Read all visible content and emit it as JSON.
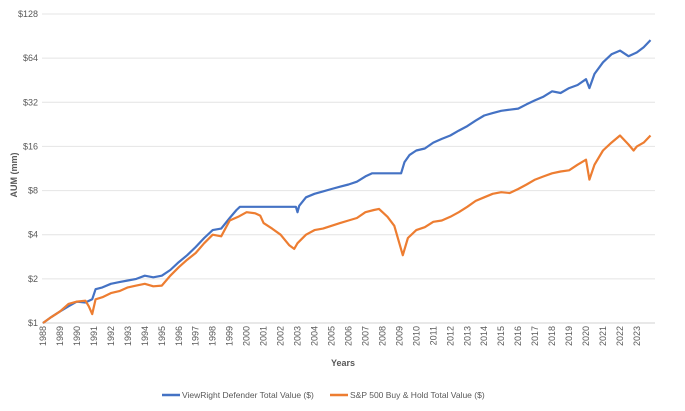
{
  "chart_data": {
    "type": "line",
    "title": "",
    "xlabel": "Years",
    "ylabel": "AUM (mm)",
    "y_scale": "log2",
    "ylim": [
      1,
      128
    ],
    "y_ticks": [
      "$1",
      "$2",
      "$4",
      "$8",
      "$16",
      "$32",
      "$64",
      "$128"
    ],
    "y_tick_values": [
      1,
      2,
      4,
      8,
      16,
      32,
      64,
      128
    ],
    "x_ticks": [
      "1988",
      "1989",
      "1990",
      "1991",
      "1992",
      "1993",
      "1994",
      "1995",
      "1996",
      "1997",
      "1998",
      "1999",
      "2000",
      "2001",
      "2002",
      "2003",
      "2004",
      "2005",
      "2006",
      "2007",
      "2008",
      "2009",
      "2010",
      "2011",
      "2012",
      "2013",
      "2014",
      "2015",
      "2016",
      "2017",
      "2018",
      "2019",
      "2020",
      "2021",
      "2022",
      "2023"
    ],
    "grid": "horizontal",
    "legend_position": "bottom",
    "series": [
      {
        "name": "ViewRight Defender Total Value ($)",
        "color": "#4472C4",
        "x": [
          1988,
          1988.5,
          1989,
          1989.5,
          1990,
          1990.5,
          1990.9,
          1991.1,
          1991.5,
          1992,
          1992.5,
          1993,
          1993.5,
          1994,
          1994.5,
          1995,
          1995.5,
          1996,
          1996.5,
          1997,
          1997.5,
          1998,
          1998.5,
          1999,
          1999.4,
          1999.6,
          2000,
          2002,
          2002.9,
          2003.0,
          2003.1,
          2003.5,
          2004,
          2004.5,
          2005,
          2005.5,
          2006,
          2006.5,
          2007,
          2007.4,
          2008,
          2009.1,
          2009.3,
          2009.6,
          2010,
          2010.5,
          2011,
          2011.5,
          2012,
          2012.5,
          2013,
          2013.5,
          2014,
          2014.5,
          2015,
          2015.5,
          2016,
          2016.5,
          2017,
          2017.5,
          2018,
          2018.5,
          2019,
          2019.5,
          2020,
          2020.2,
          2020.5,
          2021,
          2021.5,
          2022,
          2022.5,
          2023,
          2023.4,
          2023.8
        ],
        "values": [
          1.0,
          1.1,
          1.2,
          1.3,
          1.4,
          1.38,
          1.45,
          1.7,
          1.75,
          1.85,
          1.9,
          1.95,
          2.0,
          2.1,
          2.05,
          2.1,
          2.3,
          2.6,
          2.9,
          3.3,
          3.8,
          4.3,
          4.4,
          5.2,
          5.9,
          6.2,
          6.2,
          6.2,
          6.2,
          5.7,
          6.3,
          7.2,
          7.6,
          7.9,
          8.2,
          8.5,
          8.8,
          9.2,
          10.0,
          10.5,
          10.5,
          10.5,
          12.5,
          14.0,
          15.0,
          15.5,
          17.0,
          18.0,
          19.0,
          20.5,
          22.0,
          24.0,
          26.0,
          27.0,
          28.0,
          28.5,
          29.0,
          31.0,
          33.0,
          35.0,
          38.0,
          37.0,
          40.0,
          42.0,
          46.0,
          40.0,
          50.0,
          60.0,
          68.0,
          72.0,
          66.0,
          70.0,
          76.0,
          85.0
        ]
      },
      {
        "name": "S&P 500 Buy & Hold Total Value ($)",
        "color": "#ED7D31",
        "x": [
          1988,
          1988.5,
          1989,
          1989.5,
          1990,
          1990.5,
          1990.7,
          1990.9,
          1991.1,
          1991.5,
          1992,
          1992.5,
          1993,
          1993.5,
          1994,
          1994.5,
          1995,
          1995.5,
          1996,
          1996.5,
          1997,
          1997.5,
          1998,
          1998.5,
          1999,
          1999.5,
          2000,
          2000.5,
          2000.8,
          2001,
          2001.5,
          2002,
          2002.5,
          2002.8,
          2003,
          2003.5,
          2004,
          2004.5,
          2005,
          2005.5,
          2006,
          2006.5,
          2007,
          2007.5,
          2007.8,
          2008.3,
          2008.7,
          2009.2,
          2009.5,
          2010,
          2010.5,
          2011,
          2011.5,
          2012,
          2012.5,
          2013,
          2013.5,
          2014,
          2014.5,
          2015,
          2015.5,
          2016,
          2016.5,
          2017,
          2017.5,
          2018,
          2018.5,
          2019,
          2019.5,
          2020,
          2020.2,
          2020.5,
          2021,
          2021.5,
          2022,
          2022.5,
          2022.8,
          2023,
          2023.4,
          2023.8
        ],
        "values": [
          1.0,
          1.1,
          1.2,
          1.35,
          1.4,
          1.42,
          1.3,
          1.15,
          1.45,
          1.5,
          1.6,
          1.65,
          1.75,
          1.8,
          1.85,
          1.78,
          1.8,
          2.1,
          2.4,
          2.7,
          3.0,
          3.5,
          4.0,
          3.9,
          5.0,
          5.3,
          5.7,
          5.6,
          5.4,
          4.8,
          4.4,
          4.0,
          3.4,
          3.2,
          3.5,
          4.0,
          4.3,
          4.4,
          4.6,
          4.8,
          5.0,
          5.2,
          5.7,
          5.9,
          6.0,
          5.3,
          4.6,
          2.9,
          3.8,
          4.3,
          4.5,
          4.9,
          5.0,
          5.3,
          5.7,
          6.2,
          6.8,
          7.2,
          7.6,
          7.8,
          7.7,
          8.2,
          8.8,
          9.5,
          10.0,
          10.5,
          10.8,
          11.0,
          12.0,
          13.0,
          9.5,
          12.0,
          15.0,
          17.0,
          19.0,
          16.5,
          15.0,
          16.0,
          17.0,
          19.0
        ]
      }
    ]
  }
}
